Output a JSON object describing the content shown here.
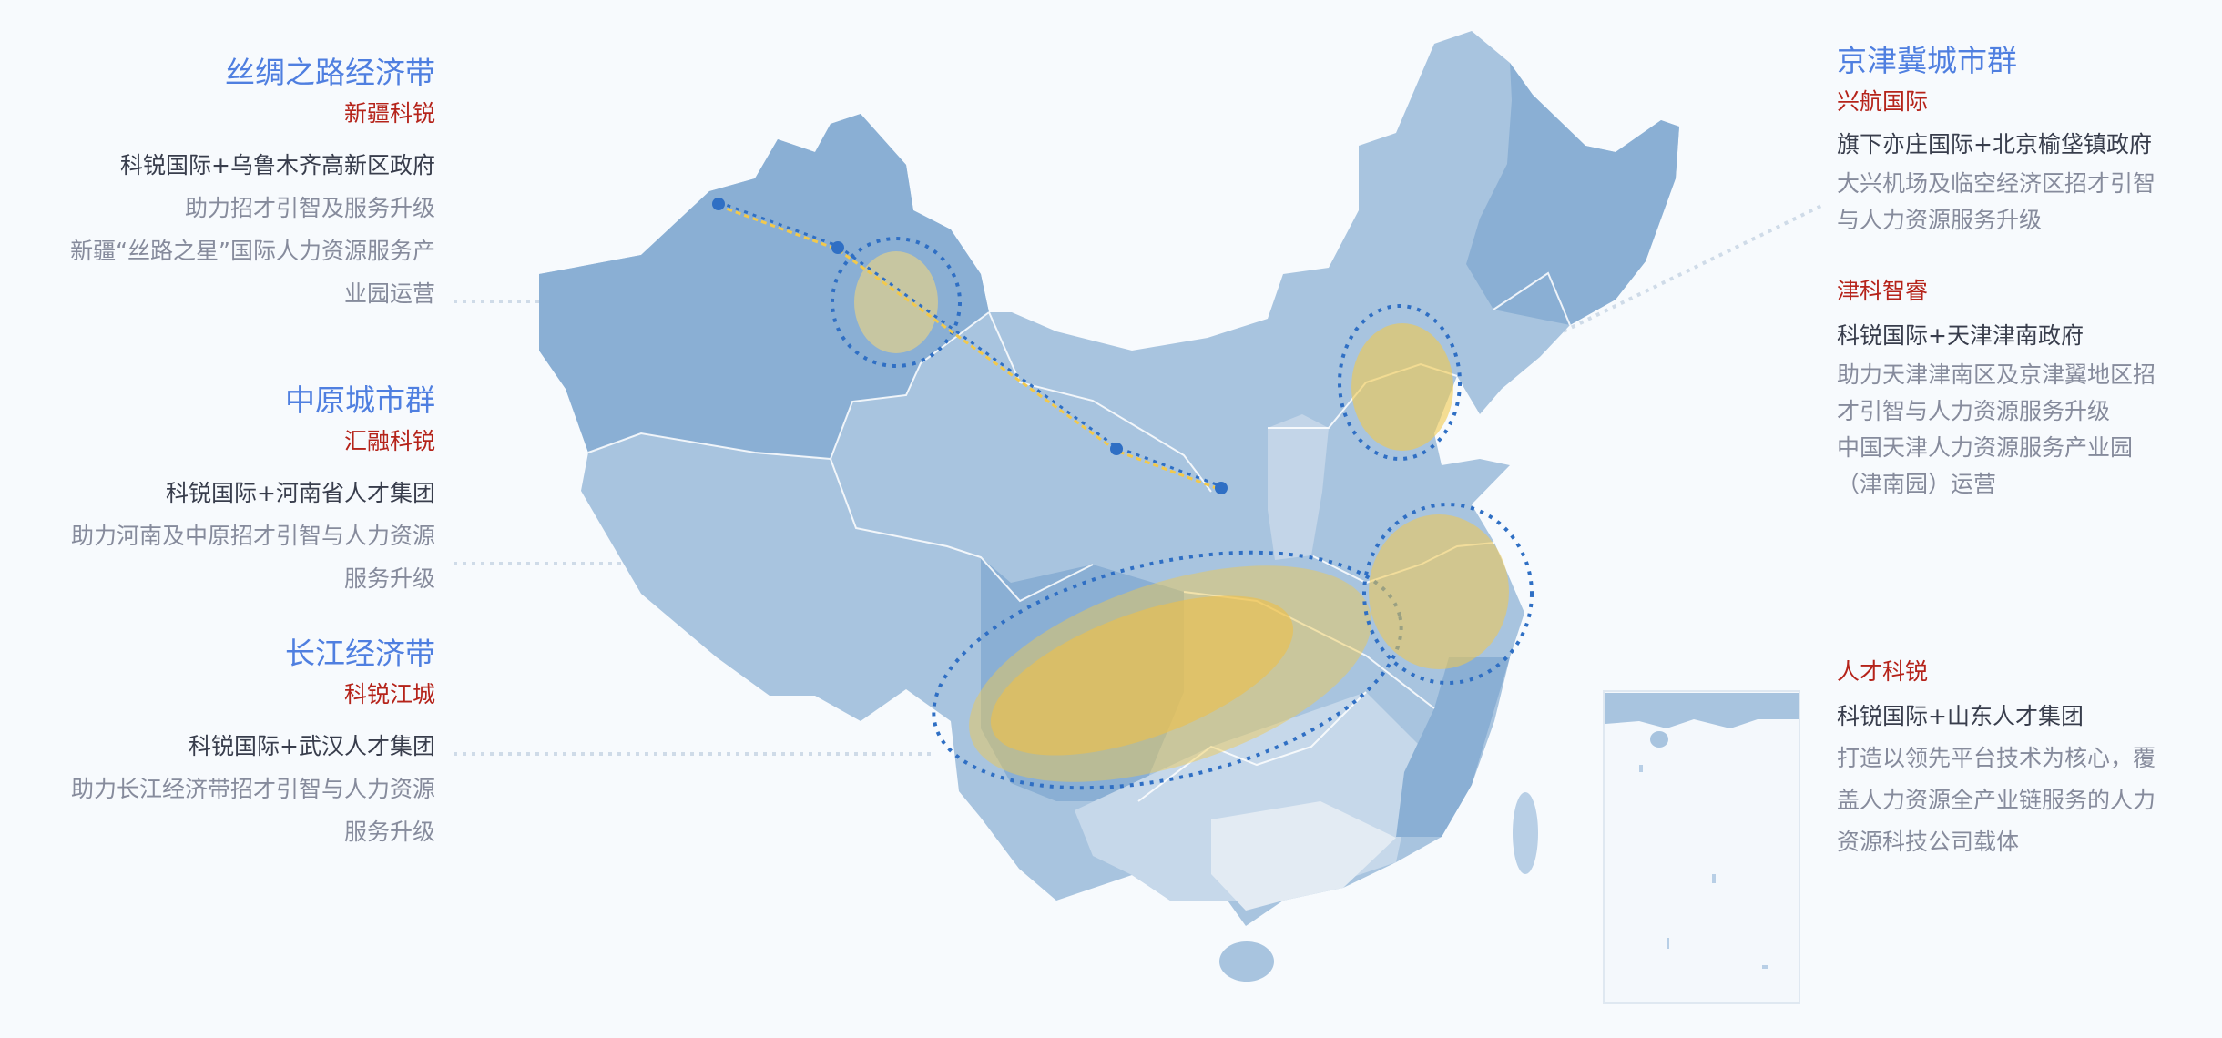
{
  "colors": {
    "background": "#f7fafd",
    "title": "#4f7fe0",
    "company": "#b5231a",
    "partner": "#383d4c",
    "description": "#868b9c",
    "map_region_dark": "#8aafd4",
    "map_region_mid": "#a8c4df",
    "map_region_light": "#c6d8ea",
    "map_region_lightest": "#e3ebf3",
    "highlight": "#f2c94c",
    "route_line": "#2f6fc4"
  },
  "left": [
    {
      "title": "丝绸之路经济带",
      "company": "新疆科锐",
      "partner": "科锐国际+乌鲁木齐高新区政府",
      "desc": [
        "助力招才引智及服务升级",
        "新疆“丝路之星”国际人力资源服务产",
        "业园运营"
      ]
    },
    {
      "title": "中原城市群",
      "company": "汇融科锐",
      "partner": "科锐国际+河南省人才集团",
      "desc": [
        "助力河南及中原招才引智与人力资源",
        "服务升级"
      ]
    },
    {
      "title": "长江经济带",
      "company": "科锐江城",
      "partner": "科锐国际+武汉人才集团",
      "desc": [
        "助力长江经济带招才引智与人力资源",
        "服务升级"
      ]
    }
  ],
  "right": {
    "title": "京津冀城市群",
    "entries": [
      {
        "company": "兴航国际",
        "partner": "旗下亦庄国际+北京榆垡镇政府",
        "desc": [
          "大兴机场及临空经济区招才引智",
          "与人力资源服务升级"
        ]
      },
      {
        "company": "津科智睿",
        "partner": "科锐国际+天津津南政府",
        "desc": [
          "助力天津津南区及京津翼地区招",
          "才引智与人力资源服务升级",
          "中国天津人力资源服务产业园",
          "（津南园）运营"
        ]
      },
      {
        "company": "人才科锐",
        "partner": "科锐国际+山东人才集团",
        "desc": [
          "打造以领先平台技术为核心，覆",
          "盖人力资源全产业链服务的人力",
          "资源科技公司载体"
        ]
      }
    ]
  }
}
